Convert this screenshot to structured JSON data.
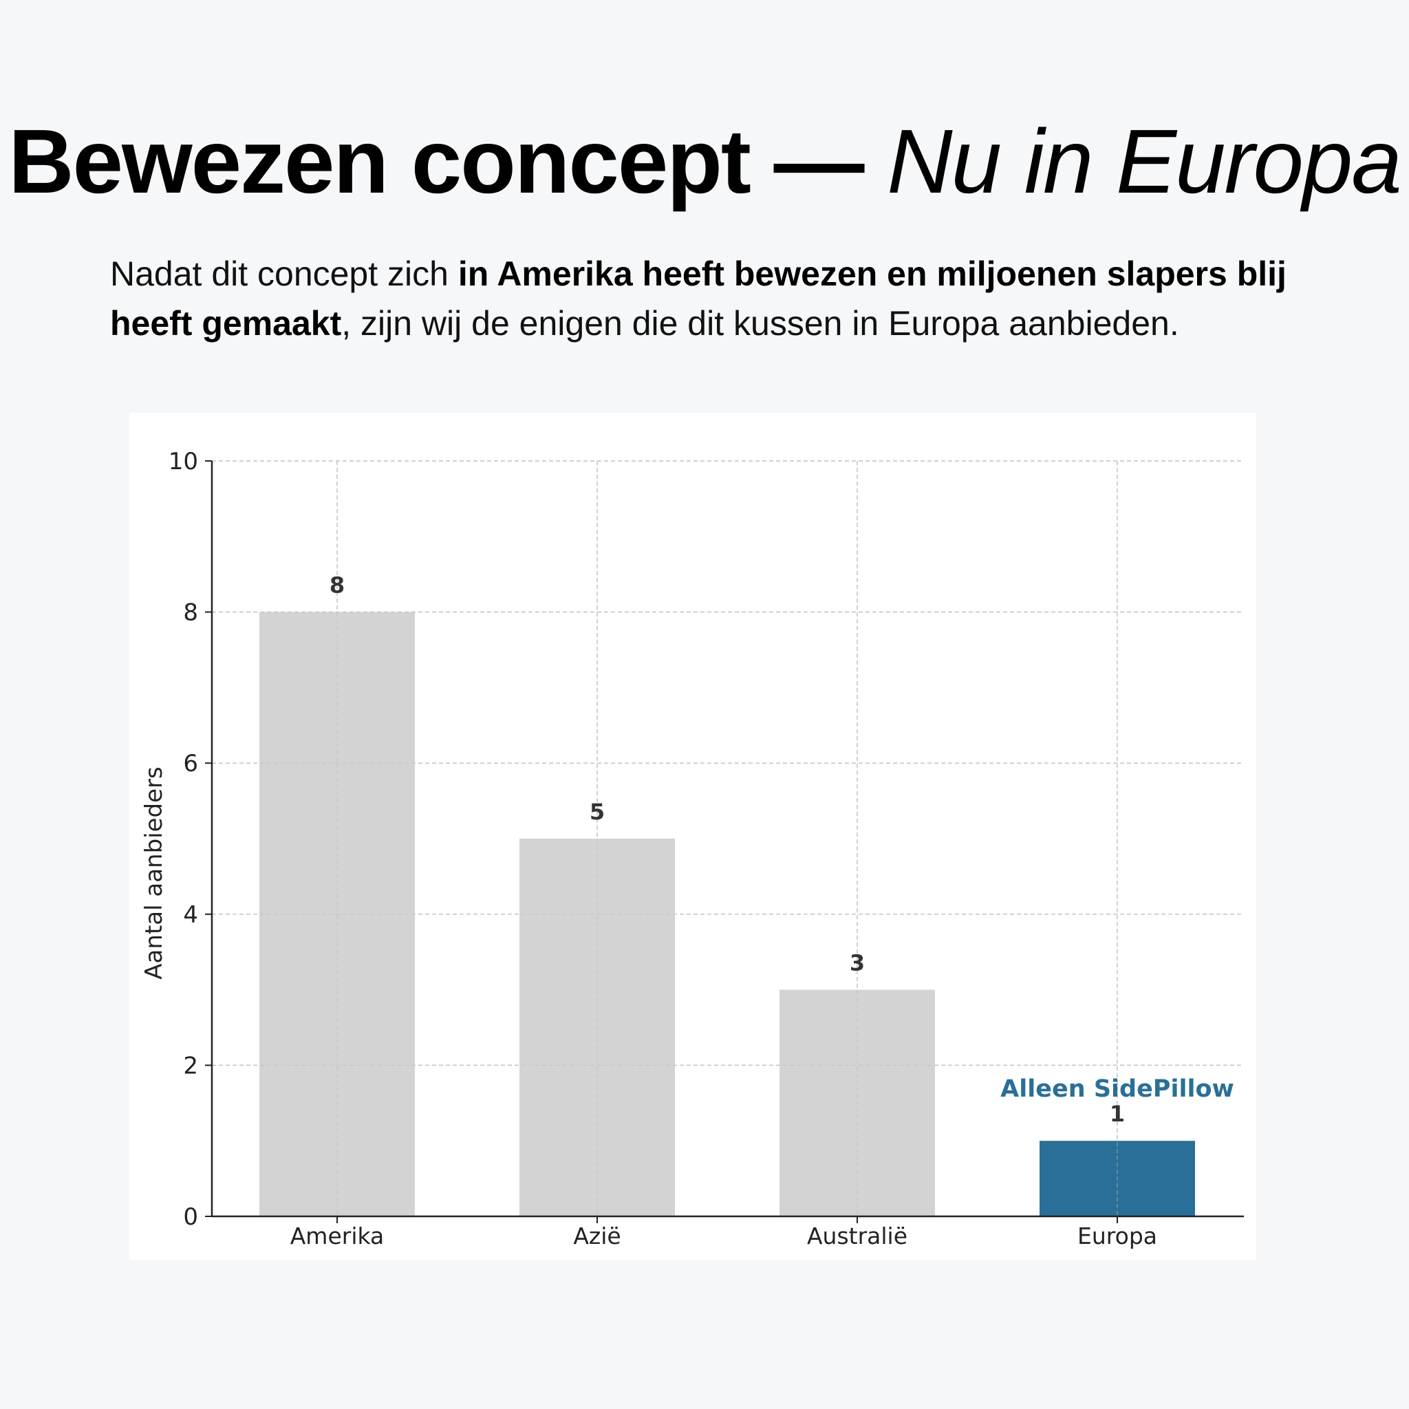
{
  "headline": {
    "bold": "Bewezen concept —",
    "italic": "Nu in Europa"
  },
  "intro": {
    "part1": "Nadat dit concept zich ",
    "bold1": "in Amerika heeft bewezen en miljoenen slapers blij heeft gemaakt",
    "part2": ", zijn wij de enigen die dit kussen in Europa aanbieden."
  },
  "colors": {
    "neutral_bar": "#d3d3d3",
    "highlight_bar": "#2a6f97",
    "highlight_text": "#2a6f97",
    "value_label": "#333333",
    "grid": "#cccccc",
    "background": "#f6f7f9"
  },
  "chart_data": {
    "type": "bar",
    "categories": [
      "Amerika",
      "Azië",
      "Australië",
      "Europa"
    ],
    "values": [
      8,
      5,
      3,
      1
    ],
    "title": "",
    "xlabel": "",
    "ylabel": "Aantal aanbieders",
    "ylim": [
      0,
      10
    ],
    "yticks": [
      0,
      2,
      4,
      6,
      8,
      10
    ],
    "grid": true,
    "highlight_index": 3,
    "annotation": {
      "text": "Alleen SidePillow",
      "category": "Europa"
    }
  }
}
